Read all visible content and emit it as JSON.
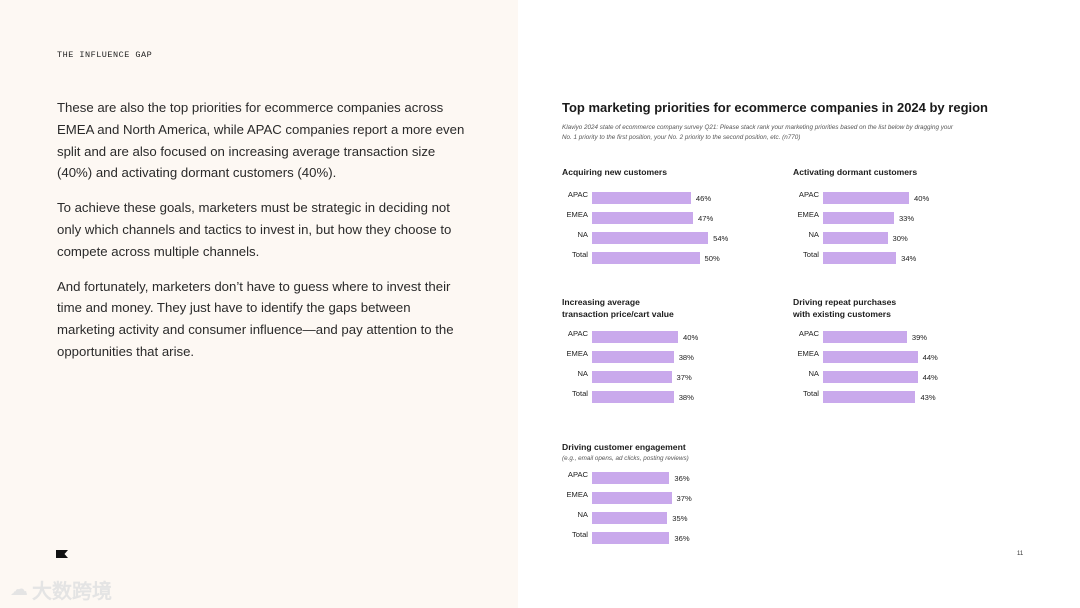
{
  "header": {
    "section_label": "THE INFLUENCE GAP"
  },
  "body": {
    "paragraphs": [
      "These are also the top priorities for ecommerce companies across EMEA and North America, while APAC companies report a more even split and are also focused on increasing average transaction size (40%) and activating dormant customers (40%).",
      "To achieve these goals, marketers must be strategic in deciding not only which channels and tactics to invest in, but how they choose to compete across multiple channels.",
      "And fortunately, marketers don’t have to guess where to invest their time and money. They just have to identify the gaps between marketing activity and consumer influence—and pay attention to the opportunities that arise."
    ]
  },
  "footer": {
    "page_number": "11",
    "logo_icon": "brand-flag-icon",
    "watermark": "大数跨境",
    "watermark_icon": "cloud-logo-icon"
  },
  "colors": {
    "bar": "#c9a9ec",
    "left_panel": "#fdf8f3"
  },
  "chart_data": {
    "type": "bar",
    "orientation": "horizontal",
    "title": "Top marketing priorities for ecommerce companies in 2024 by region",
    "note": "Klaviyo 2024 state of ecommerce company survey Q21: Please stack rank your marketing priorities based on the list below by dragging your No. 1 priority to the first position, your No. 2 priority to the second position, etc. (n770)",
    "categories": [
      "APAC",
      "EMEA",
      "NA",
      "Total"
    ],
    "unit": "%",
    "panels": [
      {
        "title_lines": [
          "Acquiring new customers"
        ],
        "subtitle": "",
        "values": [
          46,
          47,
          54,
          50
        ],
        "labels": [
          "46%",
          "47%",
          "54%",
          "50%"
        ]
      },
      {
        "title_lines": [
          "Activating dormant customers"
        ],
        "subtitle": "",
        "values": [
          40,
          33,
          30,
          34
        ],
        "labels": [
          "40%",
          "33%",
          "30%",
          "34%"
        ]
      },
      {
        "title_lines": [
          "Increasing average",
          "transaction price/cart value"
        ],
        "subtitle": "",
        "values": [
          40,
          38,
          37,
          38
        ],
        "labels": [
          "40%",
          "38%",
          "37%",
          "38%"
        ]
      },
      {
        "title_lines": [
          "Driving repeat purchases",
          "with existing customers"
        ],
        "subtitle": "",
        "values": [
          39,
          44,
          44,
          43
        ],
        "labels": [
          "39%",
          "44%",
          "44%",
          "43%"
        ]
      },
      {
        "title_lines": [
          "Driving customer engagement"
        ],
        "subtitle": "(e.g., email opens, ad clicks, posting reviews)",
        "values": [
          36,
          37,
          35,
          36
        ],
        "labels": [
          "36%",
          "37%",
          "35%",
          "36%"
        ]
      }
    ]
  }
}
